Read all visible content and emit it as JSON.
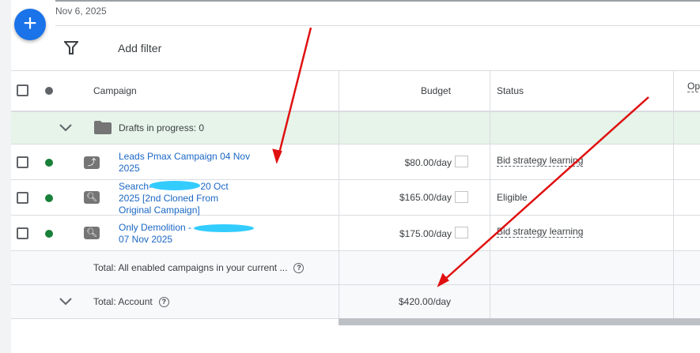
{
  "header": {
    "date": "Nov 6, 2025",
    "add_filter": "Add filter"
  },
  "columns": {
    "campaign": "Campaign",
    "budget": "Budget",
    "status": "Status",
    "optimization": "Opt"
  },
  "drafts": "Drafts in progress: 0",
  "rows": [
    {
      "name_line1": "Leads Pmax Campaign 04 Nov",
      "name_line2": "2025",
      "type_icon": "performance-max-icon",
      "status_dot": "#188038",
      "budget": "$80.00/day",
      "status": "Bid strategy learning"
    },
    {
      "name_line1": "Search-",
      "name_line1b": "20 Oct",
      "name_line2": "2025 [2nd Cloned From",
      "name_line3": "Original Campaign]",
      "type_icon": "search-icon",
      "status_dot": "#188038",
      "budget": "$165.00/day",
      "status": "Eligible"
    },
    {
      "name_line1": "Only Demolition -",
      "name_line2": "07 Nov 2025",
      "type_icon": "search-icon",
      "status_dot": "#188038",
      "budget": "$175.00/day",
      "status": "Bid strategy learning"
    }
  ],
  "totals": {
    "enabled": "Total: All enabled campaigns in your current ...",
    "account": "Total: Account",
    "account_budget": "$420.00/day"
  },
  "colors": {
    "accent": "#1a73e8",
    "drafts_bg": "#e6f4ea",
    "annotation": "#e01010",
    "redaction": "#33ccff"
  }
}
